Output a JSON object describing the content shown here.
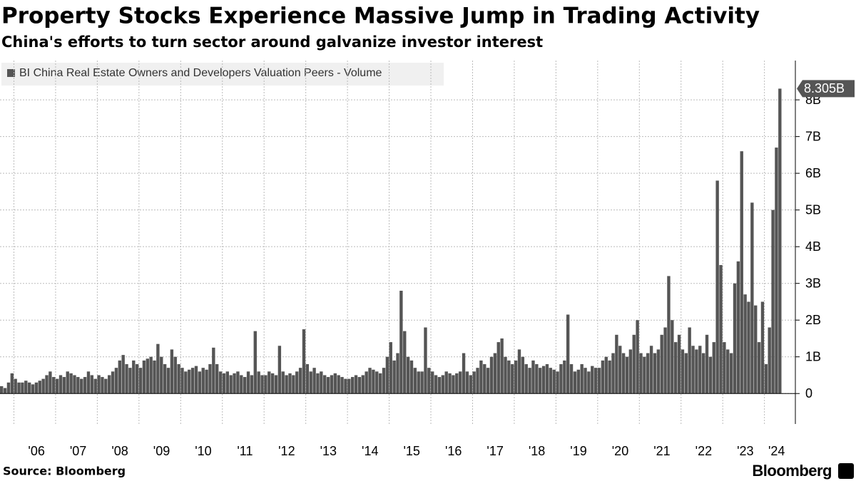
{
  "chart_data": {
    "type": "bar",
    "title": "Property Stocks Experience Massive Jump in Trading Activity",
    "subtitle": "China's efforts to turn sector around galvanize investor interest",
    "source": "Source: Bloomberg",
    "brand": "Bloomberg",
    "categories": [
      null,
      null,
      null,
      null,
      null,
      null,
      null,
      null,
      null,
      null,
      "'06",
      null,
      null,
      null,
      null,
      null,
      null,
      null,
      null,
      null,
      null,
      null,
      "'07",
      null,
      null,
      null,
      null,
      null,
      null,
      null,
      null,
      null,
      null,
      null,
      "'08",
      null,
      null,
      null,
      null,
      null,
      null,
      null,
      null,
      null,
      null,
      null,
      "'09",
      null,
      null,
      null,
      null,
      null,
      null,
      null,
      null,
      null,
      null,
      null,
      "'10",
      null,
      null,
      null,
      null,
      null,
      null,
      null,
      null,
      null,
      null,
      null,
      "'11",
      null,
      null,
      null,
      null,
      null,
      null,
      null,
      null,
      null,
      null,
      null,
      "'12",
      null,
      null,
      null,
      null,
      null,
      null,
      null,
      null,
      null,
      null,
      null,
      "'13",
      null,
      null,
      null,
      null,
      null,
      null,
      null,
      null,
      null,
      null,
      null,
      "'14",
      null,
      null,
      null,
      null,
      null,
      null,
      null,
      null,
      null,
      null,
      null,
      "'15",
      null,
      null,
      null,
      null,
      null,
      null,
      null,
      null,
      null,
      null,
      null,
      "'16",
      null,
      null,
      null,
      null,
      null,
      null,
      null,
      null,
      null,
      null,
      null,
      "'17",
      null,
      null,
      null,
      null,
      null,
      null,
      null,
      null,
      null,
      null,
      null,
      "'18",
      null,
      null,
      null,
      null,
      null,
      null,
      null,
      null,
      null,
      null,
      null,
      "'19",
      null,
      null,
      null,
      null,
      null,
      null,
      null,
      null,
      null,
      null,
      null,
      "'20",
      null,
      null,
      null,
      null,
      null,
      null,
      null,
      null,
      null,
      null,
      null,
      "'21",
      null,
      null,
      null,
      null,
      null,
      null,
      null,
      null,
      null,
      null,
      null,
      "'22",
      null,
      null,
      null,
      null,
      null,
      null,
      null,
      null,
      null,
      null,
      null,
      "'23",
      null,
      null,
      null,
      null,
      null,
      null,
      null,
      null,
      "'24",
      null
    ],
    "series": [
      {
        "name": "BI China Real Estate Owners and Developers Valuation Peers - Volume",
        "color": "#555555",
        "values": [
          0.2,
          0.15,
          0.3,
          0.55,
          0.4,
          0.3,
          0.3,
          0.35,
          0.3,
          0.25,
          0.3,
          0.35,
          0.4,
          0.5,
          0.6,
          0.45,
          0.4,
          0.5,
          0.45,
          0.6,
          0.55,
          0.5,
          0.45,
          0.4,
          0.45,
          0.6,
          0.5,
          0.4,
          0.5,
          0.45,
          0.4,
          0.5,
          0.6,
          0.7,
          0.9,
          1.05,
          0.8,
          0.7,
          0.9,
          0.8,
          0.7,
          0.9,
          0.95,
          1.0,
          0.9,
          1.35,
          1.0,
          0.8,
          0.7,
          1.2,
          1.0,
          0.8,
          0.7,
          0.6,
          0.65,
          0.7,
          0.75,
          0.6,
          0.7,
          0.65,
          0.8,
          1.25,
          0.8,
          0.6,
          0.55,
          0.6,
          0.5,
          0.55,
          0.6,
          0.5,
          0.45,
          0.6,
          0.5,
          1.7,
          0.6,
          0.5,
          0.5,
          0.6,
          0.55,
          0.5,
          1.3,
          0.6,
          0.5,
          0.55,
          0.5,
          0.6,
          0.7,
          1.75,
          0.8,
          0.6,
          0.7,
          0.55,
          0.6,
          0.5,
          0.45,
          0.5,
          0.55,
          0.5,
          0.45,
          0.4,
          0.4,
          0.45,
          0.5,
          0.45,
          0.5,
          0.6,
          0.7,
          0.65,
          0.6,
          0.55,
          0.7,
          1.0,
          1.4,
          0.9,
          1.1,
          2.8,
          1.7,
          1.0,
          0.9,
          0.7,
          0.6,
          0.6,
          1.8,
          0.7,
          0.6,
          0.5,
          0.45,
          0.5,
          0.6,
          0.55,
          0.5,
          0.55,
          0.6,
          1.1,
          0.6,
          0.5,
          0.6,
          0.7,
          0.9,
          0.8,
          0.7,
          1.0,
          1.1,
          1.4,
          1.5,
          1.0,
          0.9,
          0.8,
          0.9,
          1.2,
          1.0,
          0.8,
          0.7,
          0.9,
          0.8,
          0.7,
          0.75,
          0.8,
          0.7,
          0.65,
          0.6,
          0.8,
          0.9,
          2.15,
          0.8,
          0.6,
          0.65,
          0.8,
          0.7,
          0.6,
          0.75,
          0.7,
          0.7,
          0.9,
          1.0,
          0.9,
          1.1,
          1.6,
          1.3,
          1.1,
          1.0,
          1.2,
          1.6,
          2.0,
          1.1,
          1.0,
          1.1,
          1.3,
          1.1,
          1.2,
          1.6,
          1.8,
          3.2,
          2.0,
          1.4,
          1.6,
          1.2,
          1.1,
          1.8,
          1.3,
          1.2,
          1.3,
          1.1,
          1.6,
          1.0,
          1.4,
          5.8,
          3.5,
          1.4,
          1.2,
          1.1,
          3.0,
          3.6,
          6.6,
          2.7,
          2.5,
          5.2,
          2.4,
          1.4,
          2.5,
          0.8,
          1.8,
          5.0,
          6.7,
          8.305
        ],
        "value_labels": [
          null,
          null,
          null,
          null,
          null,
          null,
          null,
          null,
          null,
          null,
          null,
          null,
          null,
          null,
          null,
          null,
          null,
          null,
          null,
          null,
          null,
          null,
          null,
          null,
          null,
          null,
          null,
          null,
          null,
          null,
          null,
          null,
          null,
          null,
          null,
          null,
          null,
          null,
          null,
          null,
          null,
          null,
          null,
          null,
          null,
          null,
          null,
          null,
          null,
          null,
          null,
          null,
          null,
          null,
          null,
          null,
          null,
          null,
          null,
          null,
          null,
          null,
          null,
          null,
          null,
          null,
          null,
          null,
          null,
          null,
          null,
          null,
          null,
          null,
          null,
          null,
          null,
          null,
          null,
          null,
          null,
          null,
          null,
          null,
          null,
          null,
          null,
          null,
          null,
          null,
          null,
          null,
          null,
          null,
          null,
          null,
          null,
          null,
          null,
          null,
          null,
          null,
          null,
          null,
          null,
          null,
          null,
          null,
          null,
          null,
          null,
          null,
          null,
          null,
          null,
          null,
          null,
          null,
          null,
          null,
          null,
          null,
          null,
          null,
          null,
          null,
          null,
          null,
          null,
          null,
          null,
          null,
          null,
          null,
          null,
          null,
          null,
          null,
          null,
          null,
          null,
          null,
          null,
          null,
          null,
          null,
          null,
          null,
          null,
          null,
          null,
          null,
          null,
          null,
          null,
          null,
          null,
          null,
          null,
          null,
          null,
          null,
          null,
          null,
          null,
          null,
          null,
          null,
          null,
          null,
          null,
          null,
          null,
          null,
          null,
          null,
          null,
          null,
          null,
          null,
          null,
          null,
          null,
          null,
          null,
          null,
          null,
          null,
          null,
          null,
          null,
          null,
          null,
          null,
          null,
          null,
          null,
          null,
          null,
          null,
          null,
          null,
          null,
          null,
          null,
          null,
          null,
          null,
          null,
          null,
          null,
          null,
          null,
          null,
          null,
          null,
          null,
          null,
          null,
          null,
          null,
          null,
          null,
          null,
          "8.305B"
        ]
      }
    ],
    "ylim": [
      -0.83,
      9.07
    ],
    "yticks": [
      0,
      {
        "value": 1,
        "label": "1B"
      },
      {
        "value": 2,
        "label": "2B"
      },
      {
        "value": 3,
        "label": "3B"
      },
      {
        "value": 4,
        "label": "4B"
      },
      {
        "value": 5,
        "label": "5B"
      },
      {
        "value": 6,
        "label": "6B"
      },
      {
        "value": 7,
        "label": "7B"
      },
      {
        "value": 8,
        "label": "8B"
      }
    ],
    "grid": true
  }
}
